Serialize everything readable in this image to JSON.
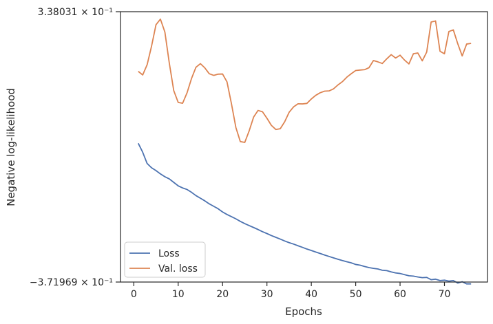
{
  "chart_data": {
    "type": "line",
    "title": "",
    "xlabel": "Epochs",
    "ylabel": "Negative log-likelihood",
    "xlim": [
      -3,
      79.7
    ],
    "ylim": [
      -0.371969,
      0.338031
    ],
    "xticks": [
      0,
      10,
      20,
      30,
      40,
      50,
      60,
      70
    ],
    "ytick_labels": {
      "top": "3.38031 × 10⁻¹",
      "bottom": "−3.71969 × 10⁻¹"
    },
    "grid": false,
    "legend_position": "lower-left",
    "colors": {
      "loss": "#4c72b0",
      "val_loss": "#dd8452",
      "axis": "#262626"
    },
    "x": [
      1,
      2,
      3,
      4,
      5,
      6,
      7,
      8,
      9,
      10,
      11,
      12,
      13,
      14,
      15,
      16,
      17,
      18,
      19,
      20,
      21,
      22,
      23,
      24,
      25,
      26,
      27,
      28,
      29,
      30,
      31,
      32,
      33,
      34,
      35,
      36,
      37,
      38,
      39,
      40,
      41,
      42,
      43,
      44,
      45,
      46,
      47,
      48,
      49,
      50,
      51,
      52,
      53,
      54,
      55,
      56,
      57,
      58,
      59,
      60,
      61,
      62,
      63,
      64,
      65,
      66,
      67,
      68,
      69,
      70,
      71,
      72,
      73,
      74,
      75,
      76
    ],
    "series": [
      {
        "name": "Loss",
        "color": "#4c72b0",
        "values": [
          -0.0076,
          -0.031,
          -0.0606,
          -0.0719,
          -0.0793,
          -0.088,
          -0.0954,
          -0.1011,
          -0.1102,
          -0.1193,
          -0.1249,
          -0.1289,
          -0.1363,
          -0.1449,
          -0.1518,
          -0.1587,
          -0.1666,
          -0.173,
          -0.1795,
          -0.1879,
          -0.1946,
          -0.2002,
          -0.206,
          -0.2126,
          -0.2186,
          -0.2237,
          -0.2288,
          -0.234,
          -0.2397,
          -0.2446,
          -0.2499,
          -0.2545,
          -0.2592,
          -0.2641,
          -0.2685,
          -0.2723,
          -0.2767,
          -0.2809,
          -0.2853,
          -0.2891,
          -0.2932,
          -0.297,
          -0.301,
          -0.3048,
          -0.3085,
          -0.3121,
          -0.3155,
          -0.3186,
          -0.3216,
          -0.3258,
          -0.3277,
          -0.3311,
          -0.334,
          -0.3361,
          -0.3376,
          -0.3411,
          -0.3419,
          -0.3453,
          -0.3481,
          -0.3495,
          -0.3526,
          -0.3555,
          -0.3564,
          -0.3587,
          -0.3604,
          -0.3598,
          -0.3658,
          -0.3644,
          -0.3681,
          -0.3671,
          -0.3696,
          -0.3681,
          -0.3746,
          -0.3712,
          -0.3768,
          -0.3768
        ]
      },
      {
        "name": "Val. loss",
        "color": "#dd8452",
        "values": [
          0.1813,
          0.1719,
          0.1987,
          0.2475,
          0.3039,
          0.3184,
          0.2847,
          0.203,
          0.1308,
          0.0998,
          0.0976,
          0.1251,
          0.1624,
          0.1921,
          0.2016,
          0.1905,
          0.1751,
          0.1708,
          0.174,
          0.1744,
          0.1537,
          0.0966,
          0.0339,
          -0.0031,
          -0.0053,
          0.0252,
          0.0613,
          0.0787,
          0.0752,
          0.0582,
          0.0395,
          0.0287,
          0.0307,
          0.0489,
          0.0739,
          0.088,
          0.0962,
          0.0958,
          0.0972,
          0.1088,
          0.1184,
          0.1252,
          0.1294,
          0.13,
          0.1354,
          0.1456,
          0.1543,
          0.166,
          0.1752,
          0.1835,
          0.1848,
          0.1858,
          0.191,
          0.2098,
          0.2063,
          0.202,
          0.2142,
          0.2252,
          0.2163,
          0.2238,
          0.211,
          0.2009,
          0.2276,
          0.2295,
          0.2089,
          0.232,
          0.311,
          0.3137,
          0.2342,
          0.2275,
          0.286,
          0.2903,
          0.2538,
          0.2219,
          0.253,
          0.2549
        ]
      }
    ]
  }
}
